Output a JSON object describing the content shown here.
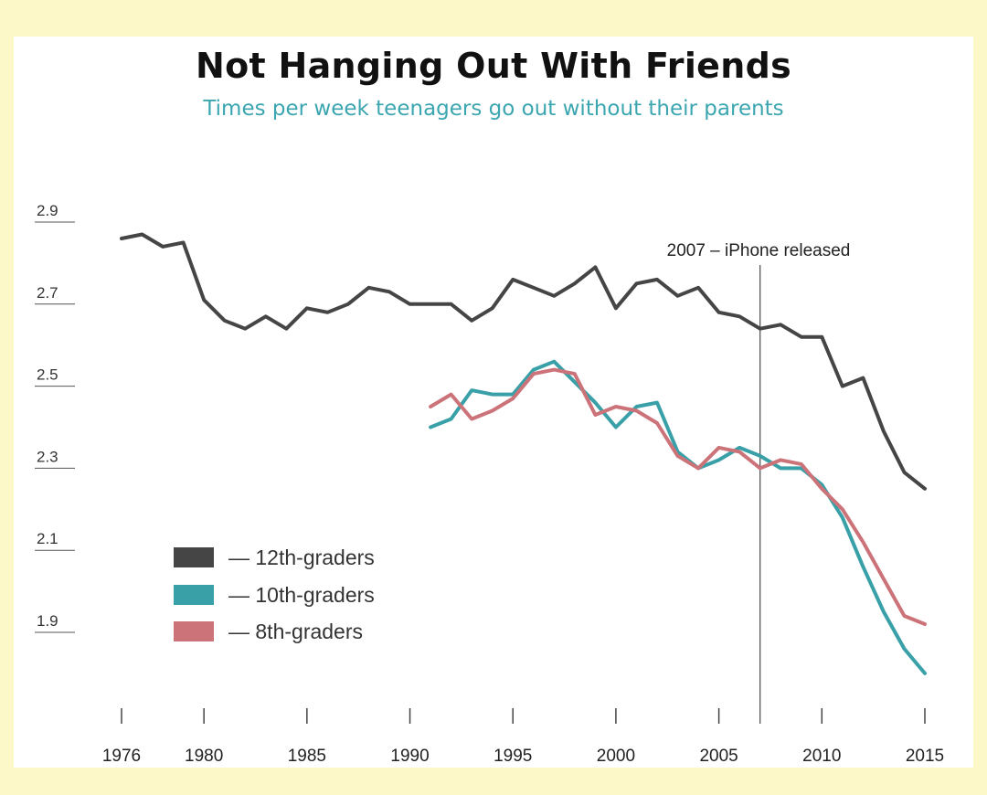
{
  "header": {
    "title": "Not Hanging Out With Friends",
    "subtitle": "Times per week teenagers go out without their parents"
  },
  "annotation": {
    "label": "2007 – iPhone released",
    "x": 2007
  },
  "legend": {
    "items": [
      {
        "label": "— 12th-graders",
        "color": "#454545"
      },
      {
        "label": "— 10th-graders",
        "color": "#3aa0a8"
      },
      {
        "label": "— 8th-graders",
        "color": "#cc737a"
      }
    ]
  },
  "chart_data": {
    "type": "line",
    "title": "Not Hanging Out With Friends",
    "subtitle": "Times per week teenagers go out without their parents",
    "xlim": [
      1976,
      2015
    ],
    "ylim": [
      1.9,
      2.9
    ],
    "x_ticks": [
      1976,
      1980,
      1985,
      1990,
      1995,
      2000,
      2005,
      2010,
      2015
    ],
    "y_ticks": [
      2.9,
      2.7,
      2.5,
      2.3,
      2.1,
      1.9
    ],
    "y_tick_labels": [
      "2.9",
      "2.7",
      "2.5",
      "2.3",
      "2.1",
      "1.9"
    ],
    "grid": false,
    "legend_position": "bottom-left",
    "series": [
      {
        "name": "12th-graders",
        "color": "#454545",
        "x": [
          1976,
          1977,
          1978,
          1979,
          1980,
          1981,
          1982,
          1983,
          1984,
          1985,
          1986,
          1987,
          1988,
          1989,
          1990,
          1991,
          1992,
          1993,
          1994,
          1995,
          1996,
          1997,
          1998,
          1999,
          2000,
          2001,
          2002,
          2003,
          2004,
          2005,
          2006,
          2007,
          2008,
          2009,
          2010,
          2011,
          2012,
          2013,
          2014,
          2015
        ],
        "values": [
          2.86,
          2.87,
          2.84,
          2.85,
          2.71,
          2.66,
          2.64,
          2.67,
          2.64,
          2.69,
          2.68,
          2.7,
          2.74,
          2.73,
          2.7,
          2.7,
          2.7,
          2.66,
          2.69,
          2.76,
          2.74,
          2.72,
          2.75,
          2.79,
          2.69,
          2.75,
          2.76,
          2.72,
          2.74,
          2.68,
          2.67,
          2.64,
          2.65,
          2.62,
          2.62,
          2.5,
          2.52,
          2.39,
          2.29,
          2.25
        ]
      },
      {
        "name": "10th-graders",
        "color": "#3aa0a8",
        "x": [
          1991,
          1992,
          1993,
          1994,
          1995,
          1996,
          1997,
          1998,
          1999,
          2000,
          2001,
          2002,
          2003,
          2004,
          2005,
          2006,
          2007,
          2008,
          2009,
          2010,
          2011,
          2012,
          2013,
          2014,
          2015
        ],
        "values": [
          2.4,
          2.42,
          2.49,
          2.48,
          2.48,
          2.54,
          2.56,
          2.51,
          2.46,
          2.4,
          2.45,
          2.46,
          2.34,
          2.3,
          2.32,
          2.35,
          2.33,
          2.3,
          2.3,
          2.26,
          2.18,
          2.06,
          1.95,
          1.86,
          1.8
        ]
      },
      {
        "name": "8th-graders",
        "color": "#cc737a",
        "x": [
          1991,
          1992,
          1993,
          1994,
          1995,
          1996,
          1997,
          1998,
          1999,
          2000,
          2001,
          2002,
          2003,
          2004,
          2005,
          2006,
          2007,
          2008,
          2009,
          2010,
          2011,
          2012,
          2013,
          2014,
          2015
        ],
        "values": [
          2.45,
          2.48,
          2.42,
          2.44,
          2.47,
          2.53,
          2.54,
          2.53,
          2.43,
          2.45,
          2.44,
          2.41,
          2.33,
          2.3,
          2.35,
          2.34,
          2.3,
          2.32,
          2.31,
          2.25,
          2.2,
          2.12,
          2.03,
          1.94,
          1.92
        ]
      }
    ]
  }
}
